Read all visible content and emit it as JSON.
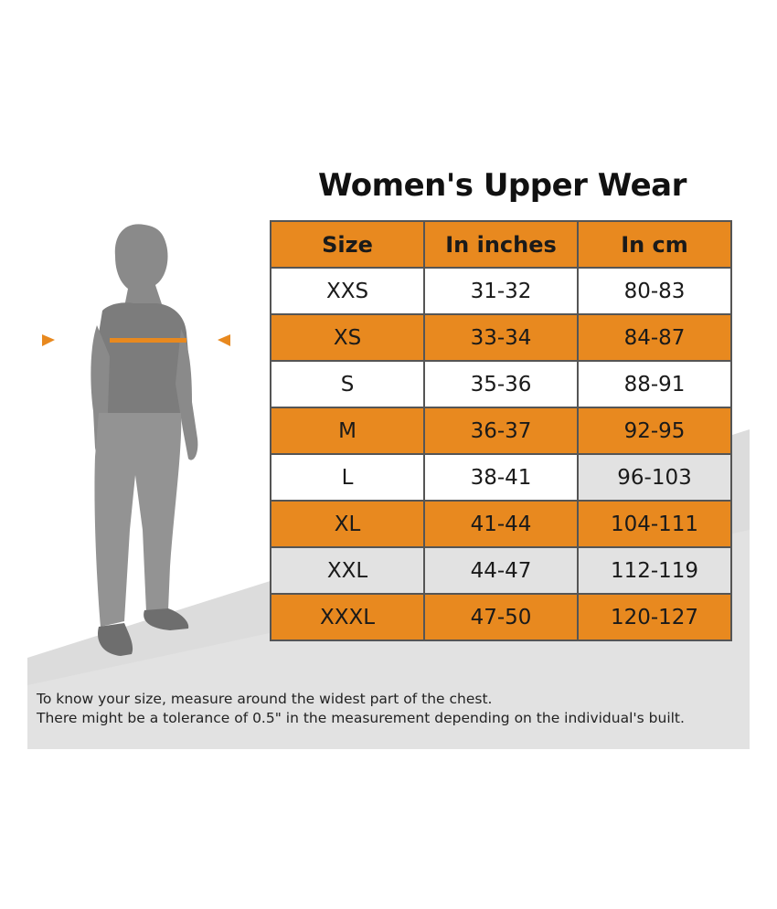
{
  "title": "Women's Upper Wear",
  "table": {
    "headers": [
      "Size",
      "In inches",
      "In cm"
    ],
    "rows": [
      {
        "size": "XXS",
        "inches": "31-32",
        "cm": "80-83"
      },
      {
        "size": "XS",
        "inches": "33-34",
        "cm": "84-87"
      },
      {
        "size": "S",
        "inches": "35-36",
        "cm": "88-91"
      },
      {
        "size": "M",
        "inches": "36-37",
        "cm": "92-95"
      },
      {
        "size": "L",
        "inches": "38-41",
        "cm": "96-103"
      },
      {
        "size": "XL",
        "inches": "41-44",
        "cm": "104-111"
      },
      {
        "size": "XXL",
        "inches": "44-47",
        "cm": "112-119"
      },
      {
        "size": "XXXL",
        "inches": "47-50",
        "cm": "120-127"
      }
    ]
  },
  "notes": {
    "line1": "To know your size, measure around the widest part of the chest.",
    "line2": "There might be a tolerance of 0.5\" in the measurement depending on the individual's built."
  },
  "figure": {
    "icon": "woman-silhouette-icon",
    "marker_icon": "arrow-marker-icon"
  },
  "colors": {
    "accent": "#e8891f",
    "silhouette": "#8a8a8a",
    "floor": "#dcdcdc"
  }
}
